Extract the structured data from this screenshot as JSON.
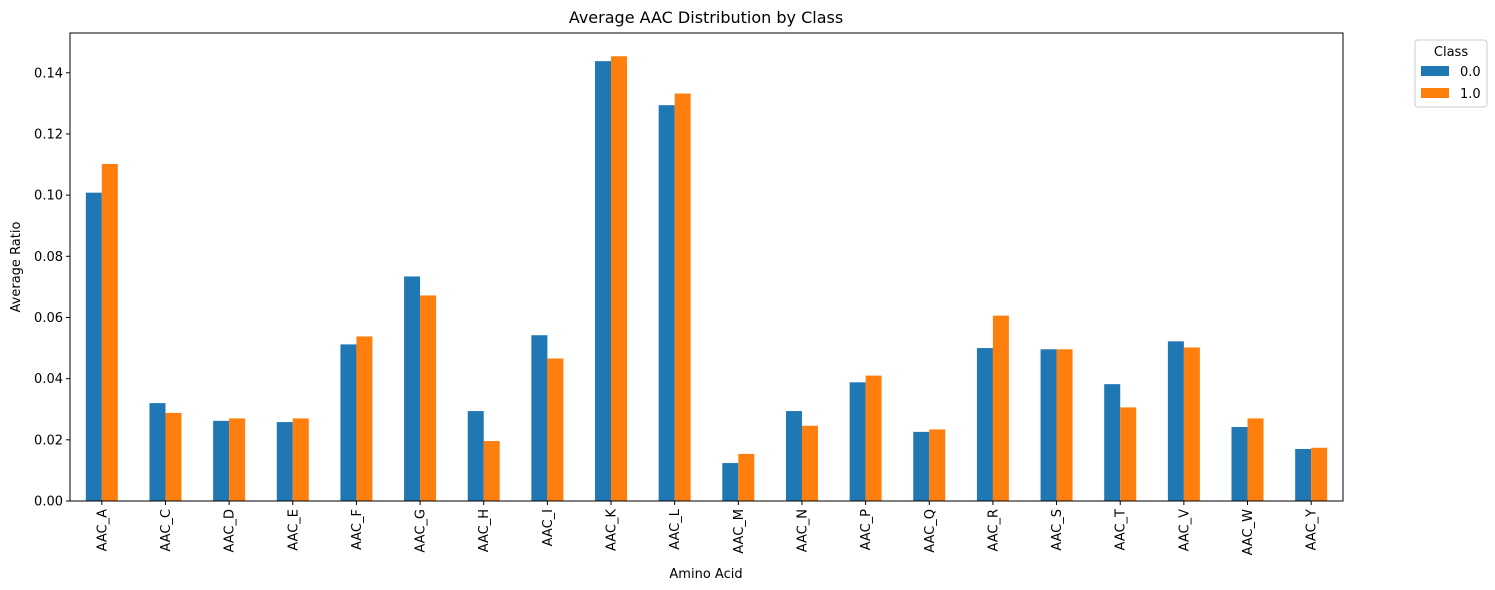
{
  "chart_data": {
    "type": "bar",
    "title": "Average AAC Distribution by Class",
    "xlabel": "Amino Acid",
    "ylabel": "Average Ratio",
    "ylim": [
      0,
      0.153
    ],
    "yticks": [
      0.0,
      0.02,
      0.04,
      0.06,
      0.08,
      0.1,
      0.12,
      0.14
    ],
    "ytick_labels": [
      "0.00",
      "0.02",
      "0.04",
      "0.06",
      "0.08",
      "0.10",
      "0.12",
      "0.14"
    ],
    "grid": false,
    "legend": {
      "title": "Class",
      "placement": "outside-top-right"
    },
    "categories": [
      "AAC_A",
      "AAC_C",
      "AAC_D",
      "AAC_E",
      "AAC_F",
      "AAC_G",
      "AAC_H",
      "AAC_I",
      "AAC_K",
      "AAC_L",
      "AAC_M",
      "AAC_N",
      "AAC_P",
      "AAC_Q",
      "AAC_R",
      "AAC_S",
      "AAC_T",
      "AAC_V",
      "AAC_W",
      "AAC_Y"
    ],
    "series": [
      {
        "name": "0.0",
        "color": "#1f77b4",
        "values": [
          0.1008,
          0.032,
          0.0262,
          0.0258,
          0.0512,
          0.0734,
          0.0294,
          0.0542,
          0.1438,
          0.1294,
          0.0124,
          0.0294,
          0.0388,
          0.0226,
          0.05,
          0.0496,
          0.0382,
          0.0522,
          0.0242,
          0.017
        ]
      },
      {
        "name": "1.0",
        "color": "#ff7f0e",
        "values": [
          0.1102,
          0.0288,
          0.027,
          0.027,
          0.0538,
          0.0672,
          0.0196,
          0.0466,
          0.1454,
          0.1332,
          0.0154,
          0.0246,
          0.041,
          0.0234,
          0.0606,
          0.0496,
          0.0306,
          0.0502,
          0.027,
          0.0174
        ]
      }
    ]
  }
}
